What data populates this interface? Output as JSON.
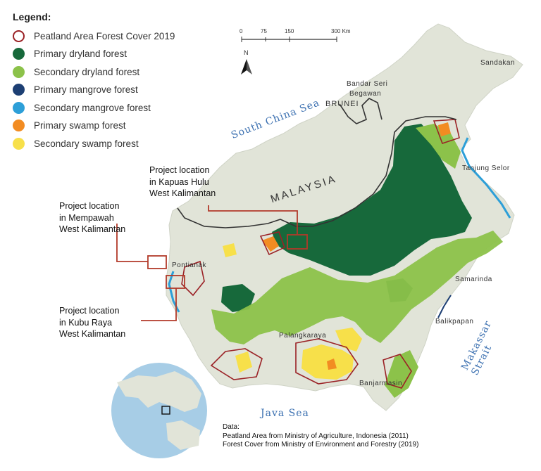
{
  "legend": {
    "title": "Legend:",
    "items": [
      {
        "label": "Peatland Area Forest Cover 2019",
        "color": "#9b2226",
        "style": "outline"
      },
      {
        "label": "Primary dryland forest",
        "color": "#17693b",
        "style": "fill"
      },
      {
        "label": "Secondary dryland forest",
        "color": "#8cc24a",
        "style": "fill"
      },
      {
        "label": "Primary mangrove forest",
        "color": "#1d3f73",
        "style": "fill"
      },
      {
        "label": "Secondary mangrove forest",
        "color": "#2d9fd8",
        "style": "fill"
      },
      {
        "label": "Primary swamp forest",
        "color": "#f28c22",
        "style": "fill"
      },
      {
        "label": "Secondary swamp forest",
        "color": "#f7e04a",
        "style": "fill"
      }
    ]
  },
  "scale_bar": {
    "ticks": [
      "0",
      "75",
      "150",
      "300 Km"
    ]
  },
  "north_arrow": {
    "label": "N"
  },
  "seas": {
    "south_china_sea": "South China Sea",
    "java_sea": "Java Sea",
    "makassar_strait": "Makassar Strait"
  },
  "countries": {
    "malaysia": "MALAYSIA",
    "brunei": "BRUNEI"
  },
  "places": {
    "sandakan": "Sandakan",
    "bandar_seri_begawan_1": "Bandar Seri",
    "bandar_seri_begawan_2": "Begawan",
    "tanjung_selor": "Tanjung Selor",
    "pontianak": "Pontianak",
    "samarinda": "Samarinda",
    "balikpapan": "Balikpapan",
    "palangkaraya": "Palangkaraya",
    "banjarmasin": "Banjarmasin"
  },
  "projects": {
    "kapuas": [
      "Project location",
      "in Kapuas Hulu",
      "West Kalimantan"
    ],
    "mempawah": [
      "Project location",
      "in Mempawah",
      "West Kalimantan"
    ],
    "kuburaya": [
      "Project location",
      "in Kubu Raya",
      "West Kalimantan"
    ]
  },
  "data_note": {
    "heading": "Data:",
    "line1": "Peatland Area from Ministry of Agriculture, Indonesia (2011)",
    "line2": "Forest Cover from Ministry of Environment and Forestry (2019)"
  },
  "colors": {
    "land": "#e1e4d8",
    "ocean_inset": "#a7cde6",
    "callout": "#b23a2a"
  }
}
